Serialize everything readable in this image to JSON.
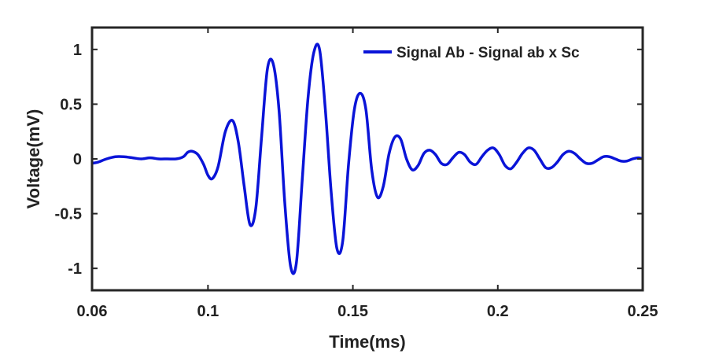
{
  "chart_data": {
    "type": "line",
    "title": "",
    "xlabel": "Time(ms)",
    "ylabel": "Voltage(mV)",
    "xlim": [
      0.06,
      0.25
    ],
    "ylim": [
      -1.2,
      1.2
    ],
    "xticks": [
      0.06,
      0.1,
      0.15,
      0.2,
      0.25
    ],
    "xtick_labels": [
      "0.06",
      "0.1",
      "0.15",
      "0.2",
      "0.25"
    ],
    "yticks": [
      1,
      0.5,
      0,
      -0.5,
      -1
    ],
    "ytick_labels": [
      "1",
      "0.5",
      "0",
      "-0.5",
      "-1"
    ],
    "grid": false,
    "legend_position": "top-right",
    "colors": {
      "series": "#0a14d8",
      "axes": "#262626"
    },
    "series": [
      {
        "name": "Signal Ab - Signal ab x Sc",
        "x": [
          0.06,
          0.062,
          0.065,
          0.068,
          0.071,
          0.074,
          0.077,
          0.08,
          0.083,
          0.086,
          0.089,
          0.0915,
          0.093,
          0.0945,
          0.0965,
          0.0985,
          0.1,
          0.1015,
          0.1035,
          0.106,
          0.1085,
          0.1105,
          0.1125,
          0.1145,
          0.1165,
          0.1185,
          0.1205,
          0.1225,
          0.1245,
          0.1265,
          0.1285,
          0.1305,
          0.1325,
          0.1345,
          0.1365,
          0.1385,
          0.1405,
          0.1425,
          0.1445,
          0.1465,
          0.1485,
          0.1505,
          0.1525,
          0.1545,
          0.1565,
          0.1585,
          0.1605,
          0.1625,
          0.1645,
          0.1665,
          0.1685,
          0.1705,
          0.1725,
          0.1745,
          0.1765,
          0.1785,
          0.1805,
          0.1825,
          0.1845,
          0.1865,
          0.1885,
          0.1905,
          0.1925,
          0.1945,
          0.1965,
          0.1985,
          0.2005,
          0.2025,
          0.2045,
          0.2065,
          0.2085,
          0.2105,
          0.2125,
          0.2145,
          0.2165,
          0.2185,
          0.2205,
          0.2225,
          0.2245,
          0.2265,
          0.2285,
          0.2305,
          0.2325,
          0.2345,
          0.2365,
          0.2385,
          0.2405,
          0.2425,
          0.2445,
          0.2465,
          0.2485,
          0.25
        ],
        "y": [
          -0.04,
          -0.03,
          0.0,
          0.02,
          0.02,
          0.01,
          0.0,
          0.01,
          0.0,
          0.0,
          0.0,
          0.02,
          0.06,
          0.07,
          0.04,
          -0.05,
          -0.15,
          -0.18,
          -0.07,
          0.25,
          0.35,
          0.15,
          -0.25,
          -0.6,
          -0.45,
          0.2,
          0.82,
          0.87,
          0.45,
          -0.4,
          -0.98,
          -0.95,
          -0.2,
          0.55,
          0.97,
          1.0,
          0.45,
          -0.3,
          -0.82,
          -0.75,
          -0.05,
          0.45,
          0.6,
          0.45,
          -0.1,
          -0.35,
          -0.25,
          0.05,
          0.2,
          0.18,
          0.0,
          -0.1,
          -0.06,
          0.05,
          0.08,
          0.04,
          -0.04,
          -0.05,
          0.01,
          0.06,
          0.04,
          -0.03,
          -0.05,
          0.02,
          0.08,
          0.1,
          0.04,
          -0.06,
          -0.09,
          -0.03,
          0.05,
          0.1,
          0.08,
          0.0,
          -0.08,
          -0.08,
          -0.03,
          0.04,
          0.07,
          0.05,
          0.0,
          -0.04,
          -0.04,
          -0.01,
          0.02,
          0.02,
          0.0,
          -0.02,
          -0.02,
          0.0,
          0.01,
          0.0
        ]
      }
    ]
  }
}
